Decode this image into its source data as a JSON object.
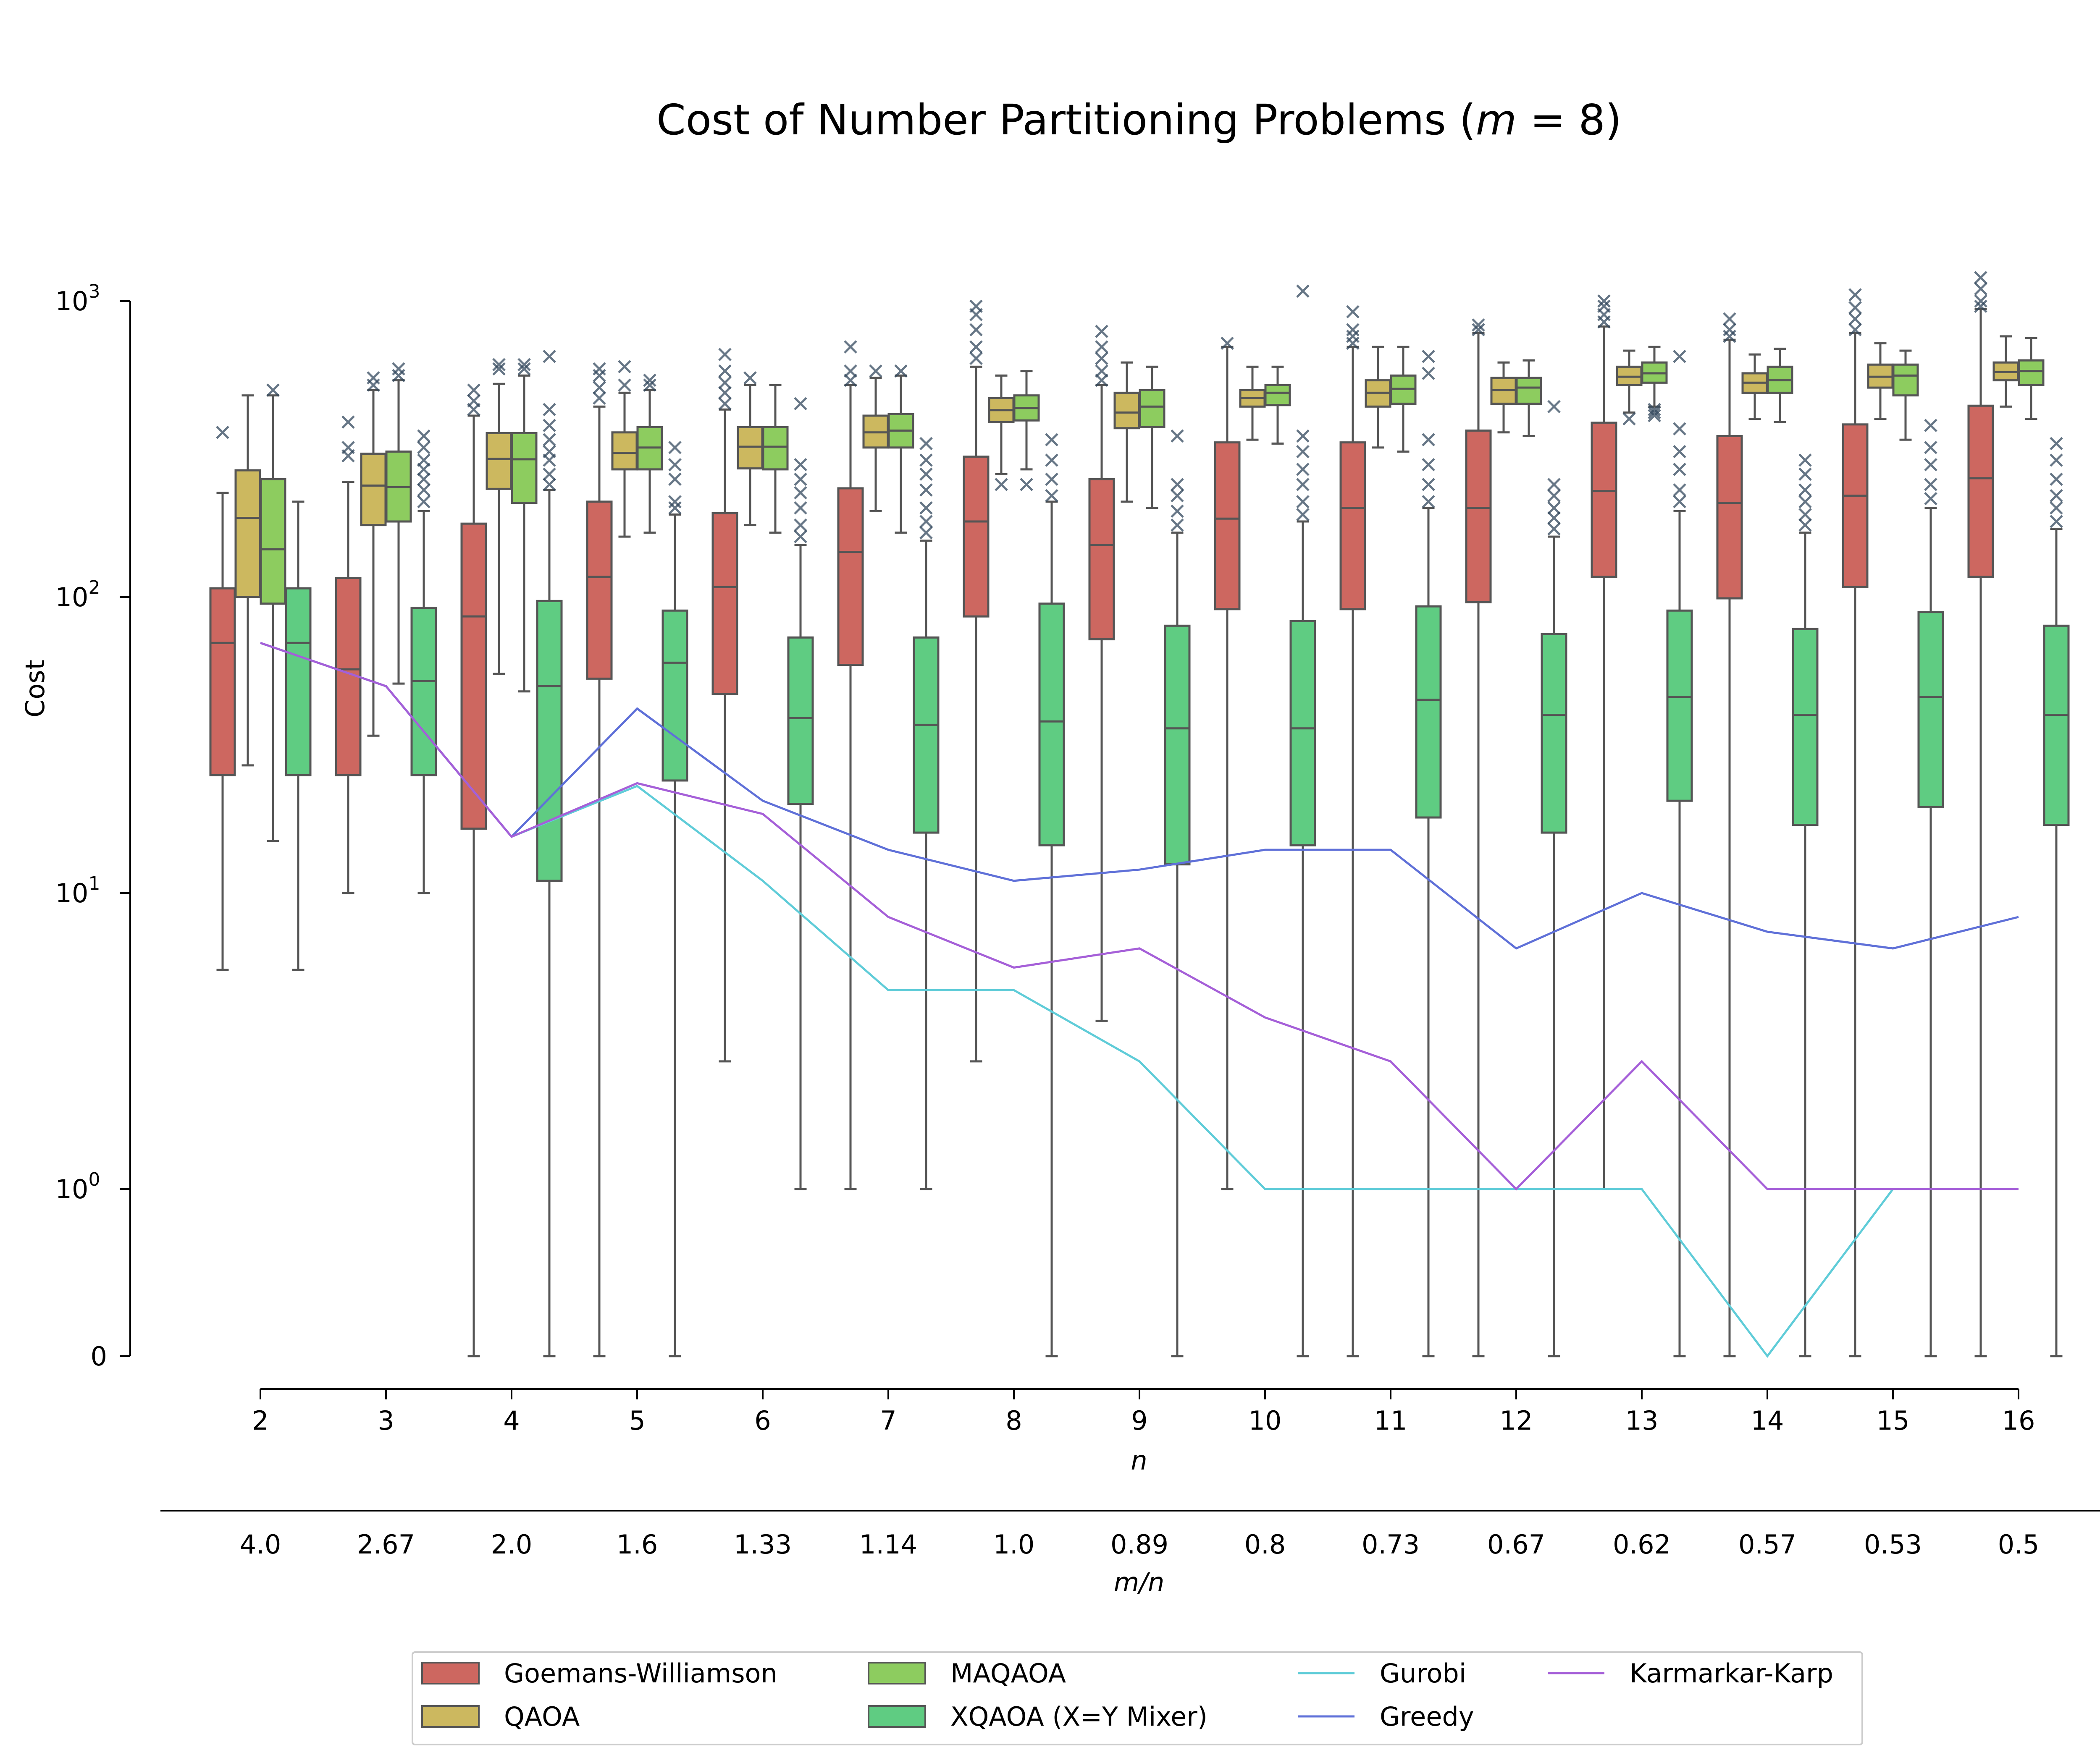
{
  "chart_data": {
    "type": "box",
    "title": "Cost of Number Partitioning Problems (m = 8)",
    "ylabel": "Cost",
    "xlabel": "n",
    "x2label": "m/n",
    "yscale": "symlog",
    "ylim": [
      0,
      1000
    ],
    "yticks": [
      {
        "value": 0,
        "base": "0",
        "exp": ""
      },
      {
        "value": 1,
        "base": "10",
        "exp": "0"
      },
      {
        "value": 10,
        "base": "10",
        "exp": "1"
      },
      {
        "value": 100,
        "base": "10",
        "exp": "2"
      },
      {
        "value": 1000,
        "base": "10",
        "exp": "3"
      }
    ],
    "categories": [
      "2",
      "3",
      "4",
      "5",
      "6",
      "7",
      "8",
      "9",
      "10",
      "11",
      "12",
      "13",
      "14",
      "15",
      "16"
    ],
    "secondary_categories": [
      "4.0",
      "2.67",
      "2.0",
      "1.6",
      "1.33",
      "1.14",
      "1.0",
      "0.89",
      "0.8",
      "0.73",
      "0.67",
      "0.62",
      "0.57",
      "0.53",
      "0.5"
    ],
    "box_series": [
      {
        "name": "Goemans-Williamson",
        "color": "#cd6760",
        "boxes": [
          {
            "whislo": 5.5,
            "q1": 25,
            "med": 70,
            "q3": 107,
            "whishi": 225,
            "fliers": [
              360
            ]
          },
          {
            "whislo": 10,
            "q1": 25,
            "med": 57,
            "q3": 116,
            "whishi": 245,
            "fliers": [
              300,
              320,
              390
            ]
          },
          {
            "whislo": 0,
            "q1": 16.5,
            "med": 86,
            "q3": 177,
            "whishi": 410,
            "fliers": [
              430,
              460,
              500
            ]
          },
          {
            "whislo": 0,
            "q1": 53,
            "med": 117,
            "q3": 210,
            "whishi": 440,
            "fliers": [
              470,
              510,
              560,
              590
            ]
          },
          {
            "whislo": 2.7,
            "q1": 47,
            "med": 108,
            "q3": 192,
            "whishi": 430,
            "fliers": [
              450,
              490,
              530,
              580,
              660
            ]
          },
          {
            "whislo": 1,
            "q1": 59,
            "med": 142,
            "q3": 233,
            "whishi": 520,
            "fliers": [
              540,
              580,
              700
            ]
          },
          {
            "whislo": 2.7,
            "q1": 86,
            "med": 180,
            "q3": 298,
            "whishi": 600,
            "fliers": [
              640,
              700,
              800,
              900,
              960
            ]
          },
          {
            "whislo": 3.7,
            "q1": 72,
            "med": 150,
            "q3": 250,
            "whishi": 520,
            "fliers": [
              540,
              580,
              640,
              700,
              790
            ]
          },
          {
            "whislo": 1,
            "q1": 91,
            "med": 184,
            "q3": 333,
            "whishi": 700,
            "fliers": [
              720
            ]
          },
          {
            "whislo": 0,
            "q1": 91,
            "med": 200,
            "q3": 333,
            "whishi": 700,
            "fliers": [
              720,
              760,
              800,
              920
            ]
          },
          {
            "whislo": 0,
            "q1": 96,
            "med": 200,
            "q3": 365,
            "whishi": 780,
            "fliers": [
              800,
              830
            ]
          },
          {
            "whislo": 1,
            "q1": 117,
            "med": 228,
            "q3": 388,
            "whishi": 820,
            "fliers": [
              850,
              900,
              960,
              1000
            ]
          },
          {
            "whislo": 0,
            "q1": 99,
            "med": 208,
            "q3": 350,
            "whishi": 740,
            "fliers": [
              760,
              800,
              870
            ]
          },
          {
            "whislo": 0,
            "q1": 108,
            "med": 220,
            "q3": 383,
            "whishi": 780,
            "fliers": [
              800,
              870,
              950,
              1050
            ]
          },
          {
            "whislo": 0,
            "q1": 117,
            "med": 252,
            "q3": 443,
            "whishi": 940,
            "fliers": [
              960,
              1000,
              1100,
              1200
            ]
          }
        ]
      },
      {
        "name": "QAOA",
        "color": "#ccb85f",
        "boxes": [
          {
            "whislo": 27,
            "q1": 100,
            "med": 185,
            "q3": 268,
            "whishi": 480,
            "fliers": []
          },
          {
            "whislo": 34,
            "q1": 175,
            "med": 238,
            "q3": 305,
            "whishi": 500,
            "fliers": [
              520,
              550
            ]
          },
          {
            "whislo": 55,
            "q1": 232,
            "med": 293,
            "q3": 358,
            "whishi": 525,
            "fliers": [
              590,
              610
            ]
          },
          {
            "whislo": 160,
            "q1": 270,
            "med": 307,
            "q3": 360,
            "whishi": 490,
            "fliers": [
              520,
              600
            ]
          },
          {
            "whislo": 175,
            "q1": 272,
            "med": 322,
            "q3": 375,
            "whishi": 520,
            "fliers": [
              550
            ]
          },
          {
            "whislo": 195,
            "q1": 320,
            "med": 360,
            "q3": 410,
            "whishi": 550,
            "fliers": [
              580
            ]
          },
          {
            "whislo": 260,
            "q1": 390,
            "med": 428,
            "q3": 470,
            "whishi": 560,
            "fliers": [
              240
            ]
          },
          {
            "whislo": 210,
            "q1": 372,
            "med": 420,
            "q3": 490,
            "whishi": 620,
            "fliers": []
          },
          {
            "whislo": 340,
            "q1": 440,
            "med": 470,
            "q3": 500,
            "whishi": 600,
            "fliers": []
          },
          {
            "whislo": 320,
            "q1": 440,
            "med": 490,
            "q3": 540,
            "whishi": 700,
            "fliers": []
          },
          {
            "whislo": 360,
            "q1": 450,
            "med": 500,
            "q3": 550,
            "whishi": 620,
            "fliers": []
          },
          {
            "whislo": 420,
            "q1": 520,
            "med": 555,
            "q3": 600,
            "whishi": 680,
            "fliers": [
              400
            ]
          },
          {
            "whislo": 400,
            "q1": 490,
            "med": 530,
            "q3": 570,
            "whishi": 660,
            "fliers": []
          },
          {
            "whislo": 400,
            "q1": 510,
            "med": 555,
            "q3": 610,
            "whishi": 720,
            "fliers": []
          },
          {
            "whislo": 440,
            "q1": 540,
            "med": 575,
            "q3": 620,
            "whishi": 760,
            "fliers": []
          }
        ]
      },
      {
        "name": "MAQAOA",
        "color": "#8dcc5f",
        "boxes": [
          {
            "whislo": 15,
            "q1": 95,
            "med": 145,
            "q3": 250,
            "whishi": 480,
            "fliers": [
              500
            ]
          },
          {
            "whislo": 51,
            "q1": 180,
            "med": 235,
            "q3": 310,
            "whishi": 540,
            "fliers": [
              560,
              590
            ]
          },
          {
            "whislo": 48,
            "q1": 208,
            "med": 292,
            "q3": 358,
            "whishi": 560,
            "fliers": [
              590,
              610
            ]
          },
          {
            "whislo": 165,
            "q1": 270,
            "med": 320,
            "q3": 375,
            "whishi": 500,
            "fliers": [
              520,
              540
            ]
          },
          {
            "whislo": 165,
            "q1": 270,
            "med": 322,
            "q3": 375,
            "whishi": 520,
            "fliers": []
          },
          {
            "whislo": 165,
            "q1": 320,
            "med": 365,
            "q3": 415,
            "whishi": 560,
            "fliers": [
              580
            ]
          },
          {
            "whislo": 270,
            "q1": 395,
            "med": 435,
            "q3": 480,
            "whishi": 580,
            "fliers": [
              240
            ]
          },
          {
            "whislo": 200,
            "q1": 375,
            "med": 440,
            "q3": 500,
            "whishi": 600,
            "fliers": []
          },
          {
            "whislo": 330,
            "q1": 445,
            "med": 490,
            "q3": 520,
            "whishi": 600,
            "fliers": []
          },
          {
            "whislo": 310,
            "q1": 450,
            "med": 505,
            "q3": 560,
            "whishi": 700,
            "fliers": []
          },
          {
            "whislo": 350,
            "q1": 450,
            "med": 510,
            "q3": 550,
            "whishi": 630,
            "fliers": []
          },
          {
            "whislo": 440,
            "q1": 530,
            "med": 570,
            "q3": 620,
            "whishi": 700,
            "fliers": [
              410,
              420,
              430
            ]
          },
          {
            "whislo": 390,
            "q1": 490,
            "med": 540,
            "q3": 600,
            "whishi": 690,
            "fliers": []
          },
          {
            "whislo": 340,
            "q1": 480,
            "med": 560,
            "q3": 610,
            "whishi": 680,
            "fliers": []
          },
          {
            "whislo": 400,
            "q1": 520,
            "med": 580,
            "q3": 630,
            "whishi": 750,
            "fliers": []
          }
        ]
      },
      {
        "name": "XQAOA (X=Y Mixer)",
        "color": "#5fcc82",
        "boxes": [
          {
            "whislo": 5.5,
            "q1": 25,
            "med": 70,
            "q3": 107,
            "whishi": 210,
            "fliers": []
          },
          {
            "whislo": 10,
            "q1": 25,
            "med": 52,
            "q3": 92,
            "whishi": 195,
            "fliers": [
              210,
              230,
              250,
              270,
              290,
              320,
              350
            ]
          },
          {
            "whislo": 0,
            "q1": 11,
            "med": 50,
            "q3": 97,
            "whishi": 230,
            "fliers": [
              240,
              260,
              290,
              310,
              340,
              380,
              430,
              650
            ]
          },
          {
            "whislo": 0,
            "q1": 24,
            "med": 60,
            "q3": 90,
            "whishi": 190,
            "fliers": [
              200,
              210,
              250,
              280,
              320
            ]
          },
          {
            "whislo": 1,
            "q1": 20,
            "med": 39,
            "q3": 73,
            "whishi": 150,
            "fliers": [
              160,
              175,
              200,
              225,
              250,
              280,
              450
            ]
          },
          {
            "whislo": 1,
            "q1": 16,
            "med": 37,
            "q3": 73,
            "whishi": 155,
            "fliers": [
              165,
              180,
              200,
              230,
              260,
              290,
              330
            ]
          },
          {
            "whislo": 0,
            "q1": 14.5,
            "med": 38,
            "q3": 95,
            "whishi": 210,
            "fliers": [
              220,
              250,
              290,
              340
            ]
          },
          {
            "whislo": 0,
            "q1": 12.5,
            "med": 36,
            "q3": 80,
            "whishi": 165,
            "fliers": [
              175,
              195,
              220,
              240,
              350
            ]
          },
          {
            "whislo": 0,
            "q1": 14.5,
            "med": 36,
            "q3": 83,
            "whishi": 180,
            "fliers": [
              190,
              210,
              240,
              270,
              310,
              350,
              1080
            ]
          },
          {
            "whislo": 0,
            "q1": 18,
            "med": 45,
            "q3": 93,
            "whishi": 200,
            "fliers": [
              210,
              240,
              280,
              340,
              570,
              650
            ]
          },
          {
            "whislo": 0,
            "q1": 16,
            "med": 40,
            "q3": 75,
            "whishi": 160,
            "fliers": [
              170,
              185,
              200,
              220,
              240,
              440
            ]
          },
          {
            "whislo": 0,
            "q1": 20.5,
            "med": 46,
            "q3": 90,
            "whishi": 195,
            "fliers": [
              210,
              230,
              270,
              310,
              370,
              650
            ]
          },
          {
            "whislo": 0,
            "q1": 17,
            "med": 40,
            "q3": 78,
            "whishi": 165,
            "fliers": [
              175,
              190,
              210,
              230,
              260,
              290
            ]
          },
          {
            "whislo": 0,
            "q1": 19.5,
            "med": 46,
            "q3": 89,
            "whishi": 200,
            "fliers": [
              215,
              240,
              280,
              320,
              380
            ]
          },
          {
            "whislo": 0,
            "q1": 17,
            "med": 40,
            "q3": 80,
            "whishi": 170,
            "fliers": [
              180,
              200,
              220,
              250,
              290,
              330
            ]
          }
        ]
      }
    ],
    "line_series": [
      {
        "name": "Gurobi",
        "color": "#5fccd8",
        "values": [
          70,
          50,
          15.5,
          23,
          11,
          4.7,
          4.7,
          2.7,
          1,
          1,
          1,
          1,
          0,
          1,
          1
        ]
      },
      {
        "name": "Greedy",
        "color": "#5f70d8",
        "values": [
          70,
          50,
          15.5,
          42,
          20.5,
          14,
          11,
          12,
          14,
          14,
          6.5,
          10,
          7.4,
          6.5,
          8.3
        ]
      },
      {
        "name": "Karmarkar-Karp",
        "color": "#a55fd8",
        "values": [
          70,
          50,
          15.5,
          23.5,
          18.5,
          8.3,
          5.6,
          6.5,
          3.8,
          2.7,
          1,
          2.7,
          1,
          1,
          1
        ]
      }
    ],
    "legend": {
      "placement": "bottom-center",
      "columns": [
        [
          "Goemans-Williamson",
          "QAOA"
        ],
        [
          "MAQAOA",
          "XQAOA (X=Y Mixer)"
        ],
        [
          "Gurobi",
          "Greedy"
        ],
        [
          "Karmarkar-Karp"
        ]
      ]
    },
    "flier_color": "#34495e",
    "grid": false
  }
}
